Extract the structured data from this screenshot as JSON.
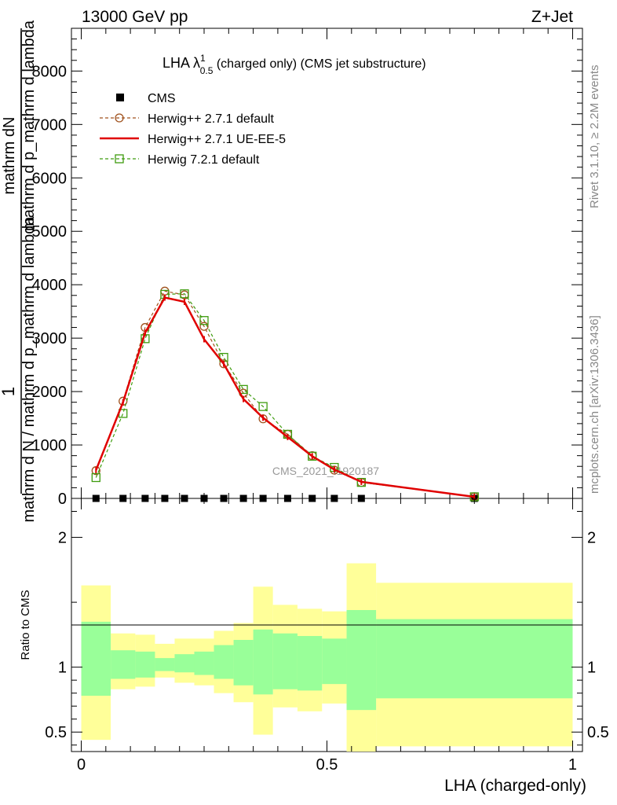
{
  "header": {
    "left": "13000 GeV pp",
    "right": "Z+Jet"
  },
  "title": {
    "main": "LHA λ",
    "sup": "1",
    "sub": "0.5",
    "rest": " (charged only) (CMS jet substructure)"
  },
  "side": {
    "rivet": "Rivet 3.1.10, ≥ 2.2M events",
    "mcplots": "mcplots.cern.ch [arXiv:1306.3436]"
  },
  "analysis_label": "CMS_2021_I1920187",
  "ylabel_main": {
    "one": "1",
    "num": "mathrm dN",
    "den": "mathrm d N / mathrm d p_mathrm d lambda",
    "ratio_num": "mathrm d p_mathrm d lambda"
  },
  "ylabel_ratio": "Ratio to CMS",
  "xlabel": "LHA (charged-only)",
  "legend": [
    {
      "label": "CMS",
      "color": "#000000",
      "style": "square-filled"
    },
    {
      "label": "Herwig++ 2.7.1 default",
      "color": "#a0521e",
      "style": "dashed-circle"
    },
    {
      "label": "Herwig++ 2.7.1 UE-EE-5",
      "color": "#e00000",
      "style": "solid"
    },
    {
      "label": "Herwig 7.2.1 default",
      "color": "#3f9c0f",
      "style": "dashed-square"
    }
  ],
  "chart_data": {
    "type": "line",
    "x": [
      0.03,
      0.085,
      0.13,
      0.17,
      0.21,
      0.25,
      0.29,
      0.33,
      0.37,
      0.42,
      0.47,
      0.515,
      0.57,
      0.8
    ],
    "xlim": [
      -0.02,
      1.02
    ],
    "ylim": [
      0,
      8800
    ],
    "yticks": [
      0,
      1000,
      2000,
      3000,
      4000,
      5000,
      6000,
      7000,
      8000
    ],
    "xticks": [
      0,
      0.5,
      1
    ],
    "xtick_labels": [
      "0",
      "0.5",
      "1"
    ],
    "series": [
      {
        "name": "CMS",
        "values": [
          0,
          0,
          0,
          0,
          0,
          0,
          0,
          0,
          0,
          0,
          0,
          0,
          0,
          0
        ]
      },
      {
        "name": "Herwig++ 2.7.1 default",
        "values": [
          520,
          1820,
          3200,
          3880,
          3810,
          3220,
          2520,
          1970,
          1490,
          1200,
          800,
          530,
          300,
          30
        ]
      },
      {
        "name": "Herwig++ 2.7.1 UE-EE-5",
        "values": [
          530,
          1800,
          3100,
          3760,
          3680,
          2980,
          2520,
          1860,
          1510,
          1150,
          790,
          540,
          310,
          30
        ]
      },
      {
        "name": "Herwig 7.2.1 default",
        "values": [
          390,
          1590,
          2990,
          3820,
          3830,
          3330,
          2640,
          2040,
          1720,
          1200,
          790,
          580,
          300,
          30
        ]
      }
    ],
    "ratio": {
      "ylim": [
        0.35,
        2.3
      ],
      "yticks": [
        0.5,
        1,
        2
      ],
      "ytick_labels": [
        "0.5",
        "1",
        "2"
      ],
      "bin_edges": [
        0,
        0.06,
        0.11,
        0.15,
        0.19,
        0.23,
        0.27,
        0.31,
        0.35,
        0.39,
        0.44,
        0.49,
        0.54,
        0.6,
        1.0
      ],
      "band_yellow": [
        [
          0.44,
          1.63
        ],
        [
          0.83,
          1.26
        ],
        [
          0.85,
          1.25
        ],
        [
          0.92,
          1.18
        ],
        [
          0.88,
          1.22
        ],
        [
          0.86,
          1.22
        ],
        [
          0.8,
          1.28
        ],
        [
          0.73,
          1.34
        ],
        [
          0.48,
          1.62
        ],
        [
          0.69,
          1.48
        ],
        [
          0.66,
          1.45
        ],
        [
          0.72,
          1.43
        ],
        [
          0.35,
          1.8
        ],
        [
          0.39,
          1.65
        ]
      ],
      "band_green": [
        [
          0.78,
          1.35
        ],
        [
          0.91,
          1.13
        ],
        [
          0.92,
          1.12
        ],
        [
          0.97,
          1.07
        ],
        [
          0.96,
          1.1
        ],
        [
          0.94,
          1.12
        ],
        [
          0.91,
          1.17
        ],
        [
          0.86,
          1.21
        ],
        [
          0.79,
          1.29
        ],
        [
          0.83,
          1.26
        ],
        [
          0.82,
          1.24
        ],
        [
          0.87,
          1.22
        ],
        [
          0.67,
          1.44
        ],
        [
          0.76,
          1.37
        ]
      ]
    }
  }
}
